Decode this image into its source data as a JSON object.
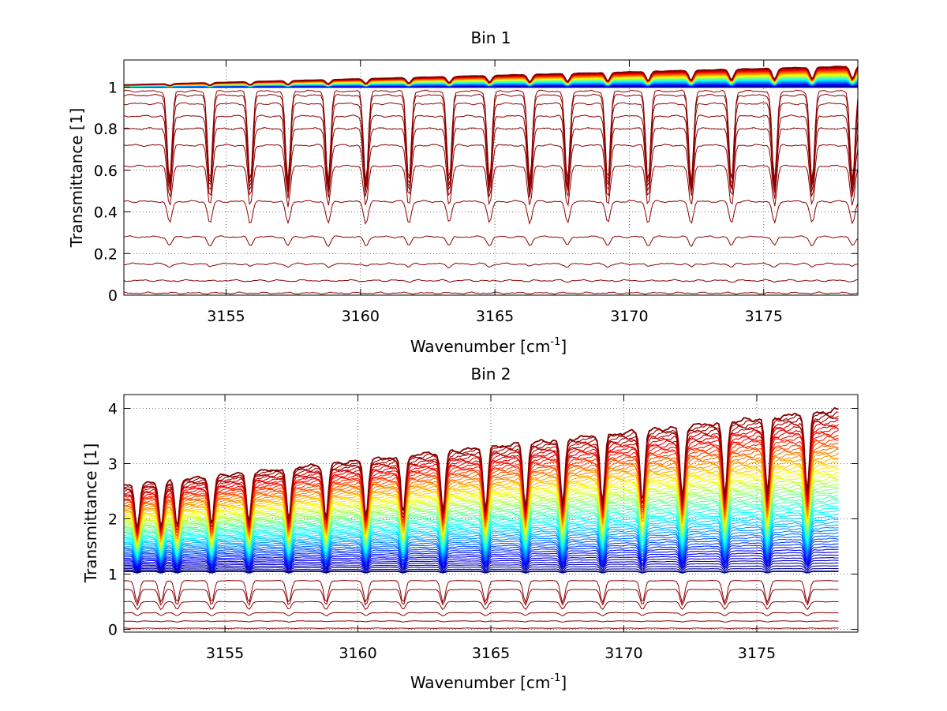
{
  "chart_data": [
    {
      "type": "line",
      "title": "Bin 1",
      "xlabel": "Wavenumber [cm",
      "xlabel_sup": "-1",
      "xlabel_end": "]",
      "ylabel": "Transmittance [1]",
      "xlim": [
        3151.2,
        3178.5
      ],
      "ylim": [
        0,
        1.13
      ],
      "xticks": [
        3155,
        3160,
        3165,
        3170,
        3175
      ],
      "yticks": [
        0,
        0.2,
        0.4,
        0.6,
        0.8,
        1
      ],
      "ytick_labels": [
        "0",
        "0.2",
        "0.4",
        "0.6",
        "0.8",
        "1"
      ],
      "grid": true,
      "colormap": "jet",
      "absorption_lines": [
        3152.9,
        3154.4,
        3155.9,
        3157.3,
        3158.8,
        3160.2,
        3161.8,
        3163.3,
        3164.8,
        3166.3,
        3167.7,
        3169.2,
        3170.7,
        3172.3,
        3173.8,
        3175.4,
        3176.8,
        3178.3
      ],
      "series_summary": {
        "below_unity_levels": [
          0.01,
          0.07,
          0.15,
          0.28,
          0.45,
          0.62,
          0.72,
          0.8,
          0.86,
          0.92,
          0.96,
          0.98
        ],
        "above_unity_start": [
          1.0,
          1.01
        ],
        "above_unity_end": [
          1.0,
          1.1
        ],
        "above_unity_series_count": 50
      }
    },
    {
      "type": "line",
      "title": "Bin 2",
      "xlabel": "Wavenumber [cm",
      "xlabel_sup": "-1",
      "xlabel_end": "]",
      "ylabel": "Transmittance [1]",
      "xlim": [
        3151.2,
        3178.8
      ],
      "ylim": [
        -0.05,
        4.25
      ],
      "xticks": [
        3155,
        3160,
        3165,
        3170,
        3175
      ],
      "yticks": [
        0,
        1,
        2,
        3,
        4
      ],
      "ytick_labels": [
        "0",
        "1",
        "2",
        "3",
        "4"
      ],
      "grid": true,
      "colormap": "jet",
      "absorption_lines": [
        3151.7,
        3152.6,
        3153.2,
        3154.5,
        3155.9,
        3157.4,
        3158.8,
        3160.3,
        3161.7,
        3163.2,
        3164.8,
        3166.3,
        3167.7,
        3169.2,
        3170.7,
        3172.2,
        3173.8,
        3175.4,
        3176.9,
        3178.4
      ],
      "series_summary": {
        "below_unity_levels": [
          0.02,
          0.15,
          0.3,
          0.5,
          0.72,
          0.88
        ],
        "above_unity_start": [
          1.05,
          2.6
        ],
        "above_unity_end": [
          1.05,
          4.0
        ],
        "above_unity_series_count": 60
      }
    }
  ]
}
